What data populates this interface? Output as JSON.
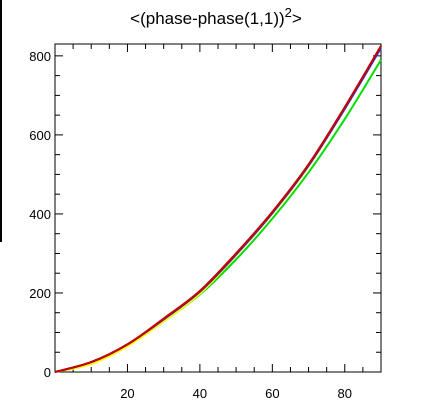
{
  "chart_data": {
    "type": "line",
    "title": {
      "main": "<(phase-phase(1,1))",
      "superscript": "2",
      "close": ">"
    },
    "xlabel": "",
    "ylabel": "",
    "xlim": [
      0,
      90
    ],
    "ylim": [
      0,
      830
    ],
    "x_ticks": [
      20,
      40,
      60,
      80
    ],
    "y_ticks": [
      0,
      200,
      400,
      600,
      800
    ],
    "grid": false,
    "series": [
      {
        "color": "#000000",
        "x": [
          0,
          10,
          20,
          30,
          40,
          50,
          60,
          70,
          80,
          90
        ],
        "y": [
          0,
          25,
          70,
          135,
          205,
          300,
          405,
          525,
          670,
          825
        ]
      },
      {
        "color": "#cc0000",
        "x": [
          0,
          10,
          20,
          30,
          40,
          50,
          60,
          70,
          80,
          90
        ],
        "y": [
          0,
          25,
          70,
          135,
          205,
          300,
          405,
          525,
          670,
          825
        ]
      },
      {
        "color": "#3030ff",
        "x": [
          0,
          10,
          20,
          30,
          40,
          50,
          60,
          70,
          80,
          90
        ],
        "y": [
          0,
          25,
          70,
          133,
          203,
          297,
          402,
          522,
          666,
          820
        ]
      },
      {
        "color": "#ffff00",
        "x": [
          0,
          10,
          20,
          30,
          40,
          50,
          60,
          70,
          80,
          90
        ],
        "y": [
          0,
          20,
          65,
          128,
          198,
          295,
          400,
          520,
          665,
          820
        ]
      },
      {
        "color": "#00dd00",
        "x": [
          0,
          10,
          20,
          30,
          40,
          50,
          60,
          70,
          80,
          90
        ],
        "y": [
          0,
          22,
          66,
          128,
          196,
          285,
          388,
          505,
          640,
          790
        ]
      }
    ]
  }
}
